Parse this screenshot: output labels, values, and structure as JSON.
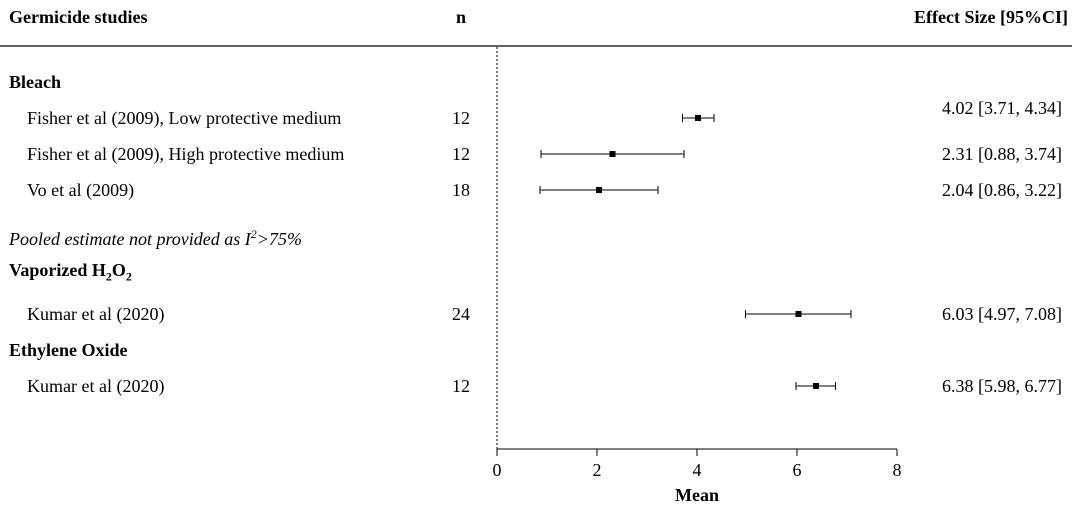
{
  "header": {
    "studies_label": "Germicide studies",
    "n_label": "n",
    "effect_label": "Effect Size [95%CI]"
  },
  "groups": [
    {
      "name": "Bleach",
      "name_sub": "",
      "name_suffix": "",
      "studies": [
        {
          "label": "Fisher et al (2009), Low protective medium",
          "n": "12",
          "effect_text": "4.02 [3.71, 4.34]"
        },
        {
          "label": "Fisher et al (2009), High protective medium",
          "n": "12",
          "effect_text": "2.31 [0.88, 3.74]"
        },
        {
          "label": "Vo et al (2009)",
          "n": "18",
          "effect_text": "2.04 [0.86, 3.22]"
        }
      ],
      "note": {
        "prefix": "Pooled estimate not provided as I",
        "sup": "2",
        "suffix": ">75%"
      }
    },
    {
      "name": "Vaporized H",
      "name_sub": "2",
      "name_mid": "O",
      "name_sub2": "2",
      "studies": [
        {
          "label": "Kumar et al (2020)",
          "n": "24",
          "effect_text": "6.03 [4.97, 7.08]"
        }
      ]
    },
    {
      "name": "Ethylene Oxide",
      "studies": [
        {
          "label": "Kumar et al (2020)",
          "n": "12",
          "effect_text": "6.38 [5.98, 6.77]"
        }
      ]
    }
  ],
  "chart_data": {
    "type": "forest",
    "xlabel": "Mean",
    "xlim": [
      0,
      8
    ],
    "xticks": [
      0,
      2,
      4,
      6,
      8
    ],
    "reference_line": 0,
    "series": [
      {
        "study": "Fisher et al (2009), Low protective medium",
        "group": "Bleach",
        "n": 12,
        "estimate": 4.02,
        "ci_low": 3.71,
        "ci_high": 4.34
      },
      {
        "study": "Fisher et al (2009), High protective medium",
        "group": "Bleach",
        "n": 12,
        "estimate": 2.31,
        "ci_low": 0.88,
        "ci_high": 3.74
      },
      {
        "study": "Vo et al (2009)",
        "group": "Bleach",
        "n": 18,
        "estimate": 2.04,
        "ci_low": 0.86,
        "ci_high": 3.22
      },
      {
        "study": "Kumar et al (2020)",
        "group": "Vaporized H2O2",
        "n": 24,
        "estimate": 6.03,
        "ci_low": 4.97,
        "ci_high": 7.08
      },
      {
        "study": "Kumar et al (2020)",
        "group": "Ethylene Oxide",
        "n": 12,
        "estimate": 6.38,
        "ci_low": 5.98,
        "ci_high": 6.77
      }
    ]
  }
}
